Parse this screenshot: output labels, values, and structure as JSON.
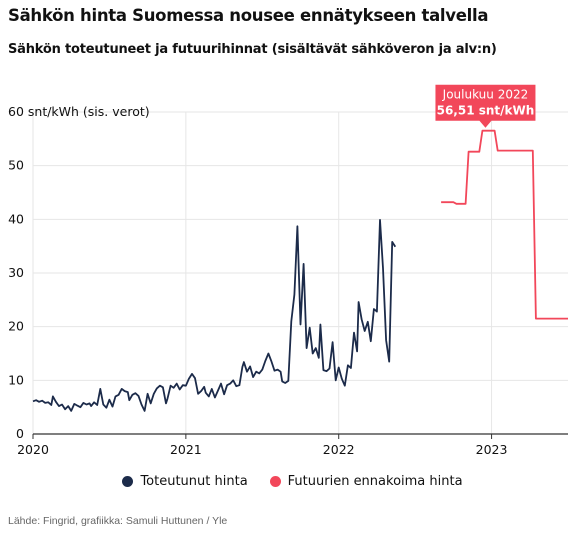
{
  "header": {
    "title": "Sähkön hinta Suomessa nousee ennätykseen talvella",
    "subtitle": "Sähkön toteutuneet ja futuurihinnat (sisältävät sähköveron ja alv:n)"
  },
  "source": "Lähde: Fingrid, grafiikka: Samuli Huttunen / Yle",
  "colors": {
    "actual": "#1c2b4a",
    "futures": "#f2475a",
    "grid": "#e6e6e6",
    "axis": "#333333"
  },
  "chart_data": {
    "type": "line",
    "ylabel": "60 snt/kWh (sis. verot)",
    "ylim": [
      0,
      60
    ],
    "yticks": [
      0,
      10,
      20,
      30,
      40,
      50,
      60
    ],
    "y_tick_labels": [
      "0",
      "10",
      "20",
      "30",
      "40",
      "50",
      ""
    ],
    "xlim": [
      2020.0,
      2023.5
    ],
    "xticks": [
      2020,
      2021,
      2022,
      2023
    ],
    "x_tick_labels": [
      "2020",
      "2021",
      "2022",
      "2023"
    ],
    "grid": true,
    "legend_position": "bottom",
    "annotation": {
      "title": "Joulukuu 2022",
      "value_label": "56,51 snt/kWh",
      "x": 2022.96,
      "y": 56.51
    },
    "series": [
      {
        "name": "Toteutunut hinta",
        "color": "#1c2b4a",
        "points": [
          [
            2020.0,
            6.1
          ],
          [
            2020.02,
            6.3
          ],
          [
            2020.04,
            6.0
          ],
          [
            2020.06,
            6.2
          ],
          [
            2020.08,
            5.8
          ],
          [
            2020.1,
            5.9
          ],
          [
            2020.12,
            5.4
          ],
          [
            2020.13,
            7.0
          ],
          [
            2020.15,
            6.0
          ],
          [
            2020.17,
            5.2
          ],
          [
            2020.19,
            5.5
          ],
          [
            2020.21,
            4.6
          ],
          [
            2020.23,
            5.2
          ],
          [
            2020.25,
            4.3
          ],
          [
            2020.27,
            5.6
          ],
          [
            2020.29,
            5.3
          ],
          [
            2020.31,
            5.0
          ],
          [
            2020.33,
            5.8
          ],
          [
            2020.35,
            5.5
          ],
          [
            2020.37,
            5.7
          ],
          [
            2020.38,
            5.2
          ],
          [
            2020.4,
            5.9
          ],
          [
            2020.42,
            5.4
          ],
          [
            2020.44,
            8.4
          ],
          [
            2020.46,
            5.5
          ],
          [
            2020.48,
            4.9
          ],
          [
            2020.5,
            6.4
          ],
          [
            2020.52,
            5.1
          ],
          [
            2020.54,
            7.0
          ],
          [
            2020.56,
            7.3
          ],
          [
            2020.58,
            8.4
          ],
          [
            2020.6,
            8.0
          ],
          [
            2020.62,
            7.8
          ],
          [
            2020.63,
            6.3
          ],
          [
            2020.65,
            7.3
          ],
          [
            2020.67,
            7.6
          ],
          [
            2020.69,
            7.1
          ],
          [
            2020.71,
            5.5
          ],
          [
            2020.73,
            4.3
          ],
          [
            2020.75,
            7.5
          ],
          [
            2020.77,
            5.7
          ],
          [
            2020.79,
            7.5
          ],
          [
            2020.81,
            8.5
          ],
          [
            2020.83,
            9.0
          ],
          [
            2020.85,
            8.7
          ],
          [
            2020.87,
            5.7
          ],
          [
            2020.88,
            6.6
          ],
          [
            2020.9,
            9.0
          ],
          [
            2020.92,
            8.6
          ],
          [
            2020.94,
            9.4
          ],
          [
            2020.96,
            8.3
          ],
          [
            2020.98,
            9.1
          ],
          [
            2021.0,
            9.0
          ],
          [
            2021.02,
            10.3
          ],
          [
            2021.04,
            11.2
          ],
          [
            2021.06,
            10.4
          ],
          [
            2021.08,
            7.5
          ],
          [
            2021.1,
            8.0
          ],
          [
            2021.12,
            8.8
          ],
          [
            2021.13,
            7.7
          ],
          [
            2021.15,
            7.0
          ],
          [
            2021.17,
            8.4
          ],
          [
            2021.19,
            6.8
          ],
          [
            2021.21,
            8.1
          ],
          [
            2021.23,
            9.4
          ],
          [
            2021.25,
            7.4
          ],
          [
            2021.27,
            9.1
          ],
          [
            2021.29,
            9.4
          ],
          [
            2021.31,
            10.0
          ],
          [
            2021.33,
            8.9
          ],
          [
            2021.35,
            9.1
          ],
          [
            2021.37,
            12.5
          ],
          [
            2021.38,
            13.4
          ],
          [
            2021.4,
            11.6
          ],
          [
            2021.42,
            12.6
          ],
          [
            2021.44,
            10.6
          ],
          [
            2021.46,
            11.6
          ],
          [
            2021.48,
            11.3
          ],
          [
            2021.5,
            12.0
          ],
          [
            2021.52,
            13.6
          ],
          [
            2021.54,
            15.0
          ],
          [
            2021.56,
            13.5
          ],
          [
            2021.58,
            11.8
          ],
          [
            2021.6,
            12.0
          ],
          [
            2021.62,
            11.6
          ],
          [
            2021.63,
            9.8
          ],
          [
            2021.65,
            9.5
          ],
          [
            2021.67,
            9.9
          ],
          [
            2021.69,
            21.0
          ],
          [
            2021.71,
            26.0
          ],
          [
            2021.73,
            38.7
          ],
          [
            2021.75,
            20.4
          ],
          [
            2021.77,
            31.7
          ],
          [
            2021.79,
            16.0
          ],
          [
            2021.81,
            19.8
          ],
          [
            2021.83,
            15.0
          ],
          [
            2021.85,
            16.0
          ],
          [
            2021.87,
            14.2
          ],
          [
            2021.88,
            20.4
          ],
          [
            2021.9,
            11.9
          ],
          [
            2021.92,
            11.7
          ],
          [
            2021.94,
            12.2
          ],
          [
            2021.96,
            17.1
          ],
          [
            2021.98,
            10.0
          ],
          [
            2022.0,
            12.4
          ],
          [
            2022.02,
            10.3
          ],
          [
            2022.04,
            9.0
          ],
          [
            2022.06,
            12.8
          ],
          [
            2022.08,
            12.3
          ],
          [
            2022.1,
            18.9
          ],
          [
            2022.12,
            15.4
          ],
          [
            2022.13,
            24.6
          ],
          [
            2022.15,
            21.4
          ],
          [
            2022.17,
            19.2
          ],
          [
            2022.19,
            20.9
          ],
          [
            2022.21,
            17.3
          ],
          [
            2022.23,
            23.3
          ],
          [
            2022.25,
            22.8
          ],
          [
            2022.27,
            39.9
          ],
          [
            2022.29,
            30.9
          ],
          [
            2022.31,
            17.5
          ],
          [
            2022.33,
            13.5
          ],
          [
            2022.35,
            35.8
          ],
          [
            2022.37,
            34.9
          ]
        ]
      },
      {
        "name": "Futuurien ennakoima hinta",
        "color": "#f2475a",
        "points": [
          [
            2022.67,
            43.2
          ],
          [
            2022.75,
            43.2
          ],
          [
            2022.77,
            42.9
          ],
          [
            2022.83,
            42.9
          ],
          [
            2022.85,
            52.6
          ],
          [
            2022.92,
            52.6
          ],
          [
            2022.94,
            56.51
          ],
          [
            2023.02,
            56.51
          ],
          [
            2023.04,
            52.8
          ],
          [
            2023.27,
            52.8
          ],
          [
            2023.29,
            21.5
          ],
          [
            2023.5,
            21.5
          ]
        ]
      }
    ]
  }
}
